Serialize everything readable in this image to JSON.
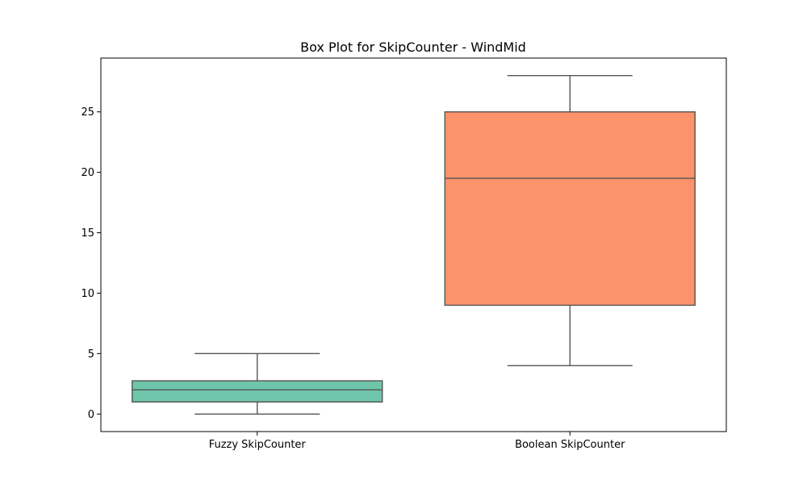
{
  "chart_data": {
    "type": "box",
    "title": "Box Plot for SkipCounter - WindMid",
    "xlabel": "",
    "ylabel": "",
    "ylim": [
      -1.45,
      29.45
    ],
    "yticks": [
      0,
      5,
      10,
      15,
      20,
      25
    ],
    "grid": false,
    "legend": "none",
    "categories": [
      "Fuzzy SkipCounter",
      "Boolean SkipCounter"
    ],
    "boxes": [
      {
        "category": "Fuzzy SkipCounter",
        "whisker_low": 0,
        "q1": 1,
        "median": 2,
        "q3": 2.75,
        "whisker_high": 5,
        "color": "#66c2a5"
      },
      {
        "category": "Boolean SkipCounter",
        "whisker_low": 4,
        "q1": 9,
        "median": 19.5,
        "q3": 25,
        "whisker_high": 28,
        "color": "#fc8d62"
      }
    ],
    "line_color": "#555555",
    "axis_color": "#000000"
  }
}
